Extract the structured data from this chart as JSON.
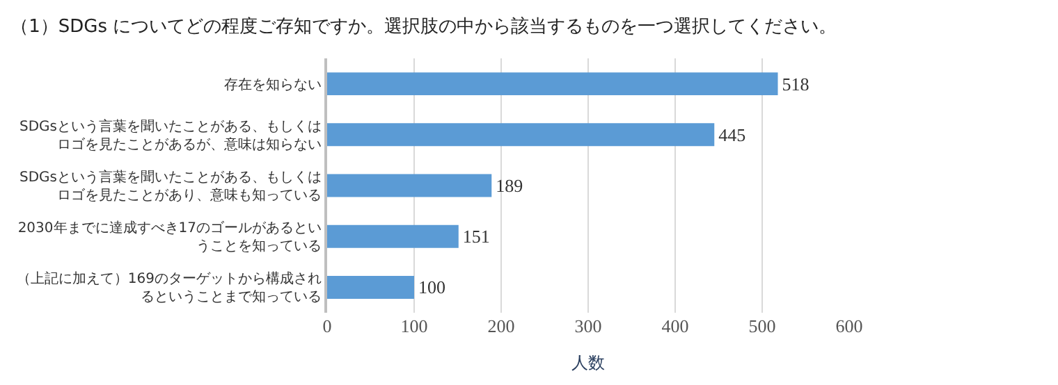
{
  "chart_data": {
    "type": "bar",
    "orientation": "horizontal",
    "title": "（1）SDGs についてどの程度ご存知ですか。選択肢の中から該当するものを一つ選択してください。",
    "categories": [
      "存在を知らない",
      "SDGsという言葉を聞いたことがある、もしくはロゴを見たことがあるが、意味は知らない",
      "SDGsという言葉を聞いたことがある、もしくはロゴを見たことがあり、意味も知っている",
      "2030年までに達成すべき17のゴールがあるということを知っている",
      "（上記に加えて）169のターゲットから構成されるということまで知っている"
    ],
    "values": [
      518,
      445,
      189,
      151,
      100
    ],
    "color": "#5b9bd5",
    "data_labels": true,
    "xlim": [
      0,
      600
    ],
    "xticks": [
      0,
      100,
      200,
      300,
      400,
      500,
      600
    ],
    "xlabel": "人数",
    "grid": "x",
    "legend": false
  }
}
